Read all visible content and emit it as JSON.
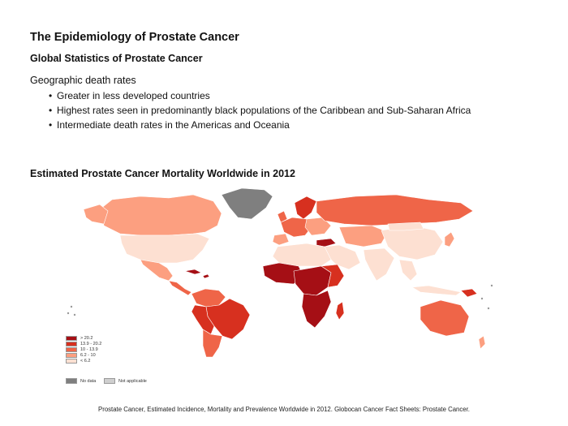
{
  "slide": {
    "title": "The Epidemiology of Prostate Cancer",
    "subtitle": "Global Statistics of Prostate Cancer",
    "section_label": "Geographic death rates",
    "bullets": [
      "Greater in less developed countries",
      "Highest rates seen in predominantly black populations of the Caribbean and Sub-Saharan Africa",
      "Intermediate death rates in the Americas and Oceania"
    ],
    "bullet_glyph": "•"
  },
  "map": {
    "title": "Estimated Prostate Cancer Mortality Worldwide in 2012",
    "legend": [
      {
        "label": "> 20.2",
        "color": "#a50f15"
      },
      {
        "label": "13.9 - 20.2",
        "color": "#d7301f"
      },
      {
        "label": "10 - 13.9",
        "color": "#ef6548"
      },
      {
        "label": "6.2 - 10",
        "color": "#fc9f80"
      },
      {
        "label": "< 6.2",
        "color": "#fde0d2"
      }
    ],
    "no_data": {
      "label": "No data",
      "color": "#7f7f7f"
    },
    "not_applicable": {
      "label": "Not applicable",
      "color": "#cfcfcf"
    }
  },
  "source": "Prostate Cancer, Estimated Incidence, Mortality and Prevalence Worldwide in 2012. Globocan Cancer Fact Sheets: Prostate Cancer."
}
